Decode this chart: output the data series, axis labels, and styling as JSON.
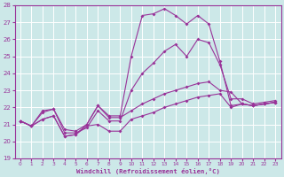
{
  "xlabel": "Windchill (Refroidissement éolien,°C)",
  "bg_color": "#cce8e8",
  "grid_color": "#ffffff",
  "line_color": "#993399",
  "xlim": [
    -0.5,
    23.5
  ],
  "ylim": [
    19,
    28
  ],
  "yticks": [
    19,
    20,
    21,
    22,
    23,
    24,
    25,
    26,
    27,
    28
  ],
  "xticks": [
    0,
    1,
    2,
    3,
    4,
    5,
    6,
    7,
    8,
    9,
    10,
    11,
    12,
    13,
    14,
    15,
    16,
    17,
    18,
    19,
    20,
    21,
    22,
    23
  ],
  "series1_x": [
    0,
    1,
    2,
    3,
    4,
    5,
    6,
    7,
    8,
    9,
    10,
    11,
    12,
    13,
    14,
    15,
    16,
    17,
    18,
    19,
    20,
    21,
    22,
    23
  ],
  "series1_y": [
    21.2,
    20.9,
    21.8,
    21.9,
    20.7,
    20.6,
    21.0,
    22.1,
    21.5,
    21.5,
    25.0,
    27.4,
    27.5,
    27.8,
    27.4,
    26.9,
    27.4,
    26.9,
    24.7,
    22.1,
    22.2,
    22.1,
    22.2,
    22.3
  ],
  "series2_x": [
    0,
    1,
    2,
    3,
    4,
    5,
    6,
    7,
    8,
    9,
    10,
    11,
    12,
    13,
    14,
    15,
    16,
    17,
    18,
    19,
    20,
    21,
    22,
    23
  ],
  "series2_y": [
    21.2,
    20.9,
    21.7,
    21.9,
    20.5,
    20.5,
    20.8,
    21.8,
    21.2,
    21.2,
    23.0,
    24.0,
    24.6,
    25.3,
    25.7,
    25.0,
    26.0,
    25.8,
    24.5,
    22.5,
    22.5,
    22.2,
    22.3,
    22.4
  ],
  "series3_x": [
    0,
    1,
    2,
    3,
    4,
    5,
    6,
    7,
    8,
    9,
    10,
    11,
    12,
    13,
    14,
    15,
    16,
    17,
    18,
    19,
    20,
    21,
    22,
    23
  ],
  "series3_y": [
    21.2,
    20.9,
    21.3,
    21.5,
    20.3,
    20.4,
    21.0,
    22.1,
    21.4,
    21.4,
    21.8,
    22.2,
    22.5,
    22.8,
    23.0,
    23.2,
    23.4,
    23.5,
    23.0,
    22.9,
    22.2,
    22.1,
    22.2,
    22.3
  ],
  "series4_x": [
    0,
    1,
    2,
    3,
    4,
    5,
    6,
    7,
    8,
    9,
    10,
    11,
    12,
    13,
    14,
    15,
    16,
    17,
    18,
    19,
    20,
    21,
    22,
    23
  ],
  "series4_y": [
    21.2,
    20.9,
    21.3,
    21.5,
    20.3,
    20.4,
    20.9,
    21.0,
    20.6,
    20.6,
    21.3,
    21.5,
    21.7,
    22.0,
    22.2,
    22.4,
    22.6,
    22.7,
    22.8,
    22.0,
    22.2,
    22.1,
    22.2,
    22.3
  ],
  "marker": "D",
  "markersize": 2.0,
  "linewidth": 0.8
}
